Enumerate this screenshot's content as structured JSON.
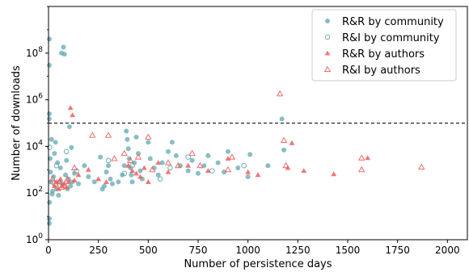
{
  "chart_data": {
    "type": "scatter",
    "xlabel": "Number of persistence days",
    "ylabel": "Number of downloads",
    "x_ticks": [
      0,
      250,
      500,
      750,
      1000,
      1250,
      1500,
      1750,
      2000
    ],
    "y_ticks": [
      1,
      100,
      10000,
      1000000,
      100000000
    ],
    "y_tick_labels": [
      "10^0",
      "10^2",
      "10^4",
      "10^6",
      "10^8"
    ],
    "xlim": [
      0,
      2100
    ],
    "ylim": [
      1,
      10000000000
    ],
    "y_scale": "log",
    "threshold_line": {
      "y": 100000,
      "style": "dashed"
    },
    "legend": {
      "position": "top-right"
    },
    "colors": {
      "community": "#5fa8b0",
      "authors": "#f25c5c"
    },
    "series": [
      {
        "name": "R&R by community",
        "marker": "filled-circle",
        "color": "#5fa8b0",
        "points": [
          [
            0,
            400000000
          ],
          [
            0,
            30000000
          ],
          [
            0,
            8
          ],
          [
            0,
            5
          ],
          [
            2,
            150000
          ],
          [
            3,
            250000
          ],
          [
            5,
            40
          ],
          [
            8,
            3000
          ],
          [
            10,
            800
          ],
          [
            12,
            300
          ],
          [
            15,
            20000
          ],
          [
            18,
            90
          ],
          [
            20,
            120
          ],
          [
            25,
            500
          ],
          [
            30,
            5000
          ],
          [
            35,
            15000
          ],
          [
            40,
            150
          ],
          [
            45,
            2000
          ],
          [
            50,
            80
          ],
          [
            55,
            300
          ],
          [
            60,
            1200
          ],
          [
            65,
            100000000
          ],
          [
            70,
            250
          ],
          [
            75,
            180000000
          ],
          [
            80,
            90000000
          ],
          [
            85,
            600
          ],
          [
            90,
            2500
          ],
          [
            95,
            150
          ],
          [
            100,
            400
          ],
          [
            105,
            70000
          ],
          [
            110,
            200
          ],
          [
            115,
            9000
          ],
          [
            120,
            300
          ],
          [
            130,
            700
          ],
          [
            150,
            250
          ],
          [
            180,
            1500
          ],
          [
            200,
            500
          ],
          [
            230,
            300
          ],
          [
            260,
            3500
          ],
          [
            270,
            150
          ],
          [
            280,
            200
          ],
          [
            290,
            800
          ],
          [
            300,
            1500
          ],
          [
            310,
            400
          ],
          [
            320,
            250
          ],
          [
            350,
            300
          ],
          [
            370,
            600
          ],
          [
            380,
            1500
          ],
          [
            390,
            45000
          ],
          [
            395,
            20000
          ],
          [
            400,
            8000
          ],
          [
            405,
            3000
          ],
          [
            410,
            1200
          ],
          [
            415,
            600
          ],
          [
            420,
            300
          ],
          [
            430,
            2000
          ],
          [
            440,
            25000
          ],
          [
            450,
            5000
          ],
          [
            460,
            900
          ],
          [
            470,
            400
          ],
          [
            500,
            15000
          ],
          [
            510,
            3000
          ],
          [
            530,
            1200
          ],
          [
            550,
            600
          ],
          [
            570,
            2000
          ],
          [
            600,
            6000
          ],
          [
            620,
            15000
          ],
          [
            640,
            4000
          ],
          [
            660,
            1500
          ],
          [
            700,
            900
          ],
          [
            720,
            2500
          ],
          [
            750,
            700
          ],
          [
            780,
            1500
          ],
          [
            800,
            4000
          ],
          [
            850,
            2000
          ],
          [
            880,
            800
          ],
          [
            900,
            6000
          ],
          [
            950,
            1200
          ],
          [
            1000,
            500
          ],
          [
            1010,
            4500
          ],
          [
            1100,
            1500
          ],
          [
            1170,
            150000
          ],
          [
            1180,
            7000
          ]
        ]
      },
      {
        "name": "R&I by community",
        "marker": "open-circle",
        "color": "#5fa8b0",
        "points": [
          [
            5,
            9000
          ],
          [
            20,
            300
          ],
          [
            40,
            1500
          ],
          [
            90,
            6000
          ],
          [
            140,
            900
          ],
          [
            300,
            2500
          ],
          [
            380,
            700
          ],
          [
            420,
            1500
          ],
          [
            560,
            400
          ],
          [
            610,
            1200
          ],
          [
            700,
            3500
          ],
          [
            820,
            900
          ],
          [
            980,
            1500
          ]
        ]
      },
      {
        "name": "R&R by authors",
        "marker": "filled-triangle",
        "color": "#f25c5c",
        "points": [
          [
            30,
            200
          ],
          [
            40,
            300
          ],
          [
            50,
            150
          ],
          [
            60,
            400
          ],
          [
            70,
            200
          ],
          [
            80,
            250
          ],
          [
            90,
            180
          ],
          [
            100,
            300
          ],
          [
            110,
            450000
          ],
          [
            120,
            220000
          ],
          [
            130,
            350
          ],
          [
            150,
            600
          ],
          [
            200,
            1000
          ],
          [
            250,
            400
          ],
          [
            290,
            300
          ],
          [
            400,
            1500
          ],
          [
            420,
            900
          ],
          [
            440,
            700
          ],
          [
            460,
            500
          ],
          [
            480,
            1200
          ],
          [
            500,
            300
          ],
          [
            550,
            2000
          ],
          [
            600,
            800
          ],
          [
            700,
            1500
          ],
          [
            800,
            900
          ],
          [
            900,
            3000
          ],
          [
            1000,
            800
          ],
          [
            1050,
            600
          ],
          [
            1200,
            1200
          ],
          [
            1220,
            14000
          ],
          [
            1280,
            900
          ],
          [
            1430,
            650
          ],
          [
            1600,
            3200
          ]
        ]
      },
      {
        "name": "R&I by authors",
        "marker": "open-triangle",
        "color": "#f25c5c",
        "points": [
          [
            20,
            400
          ],
          [
            35,
            250
          ],
          [
            55,
            300
          ],
          [
            65,
            180
          ],
          [
            95,
            400
          ],
          [
            130,
            1200
          ],
          [
            220,
            30000
          ],
          [
            300,
            30000
          ],
          [
            330,
            3000
          ],
          [
            380,
            5000
          ],
          [
            410,
            2500
          ],
          [
            450,
            3500
          ],
          [
            500,
            25000
          ],
          [
            520,
            1000
          ],
          [
            600,
            2000
          ],
          [
            650,
            1500
          ],
          [
            720,
            5000
          ],
          [
            760,
            1500
          ],
          [
            900,
            1000
          ],
          [
            920,
            3500
          ],
          [
            1160,
            1800000
          ],
          [
            1180,
            18000
          ],
          [
            1190,
            1500
          ],
          [
            1570,
            3200
          ],
          [
            1570,
            1000
          ],
          [
            1870,
            1300
          ]
        ]
      }
    ]
  }
}
